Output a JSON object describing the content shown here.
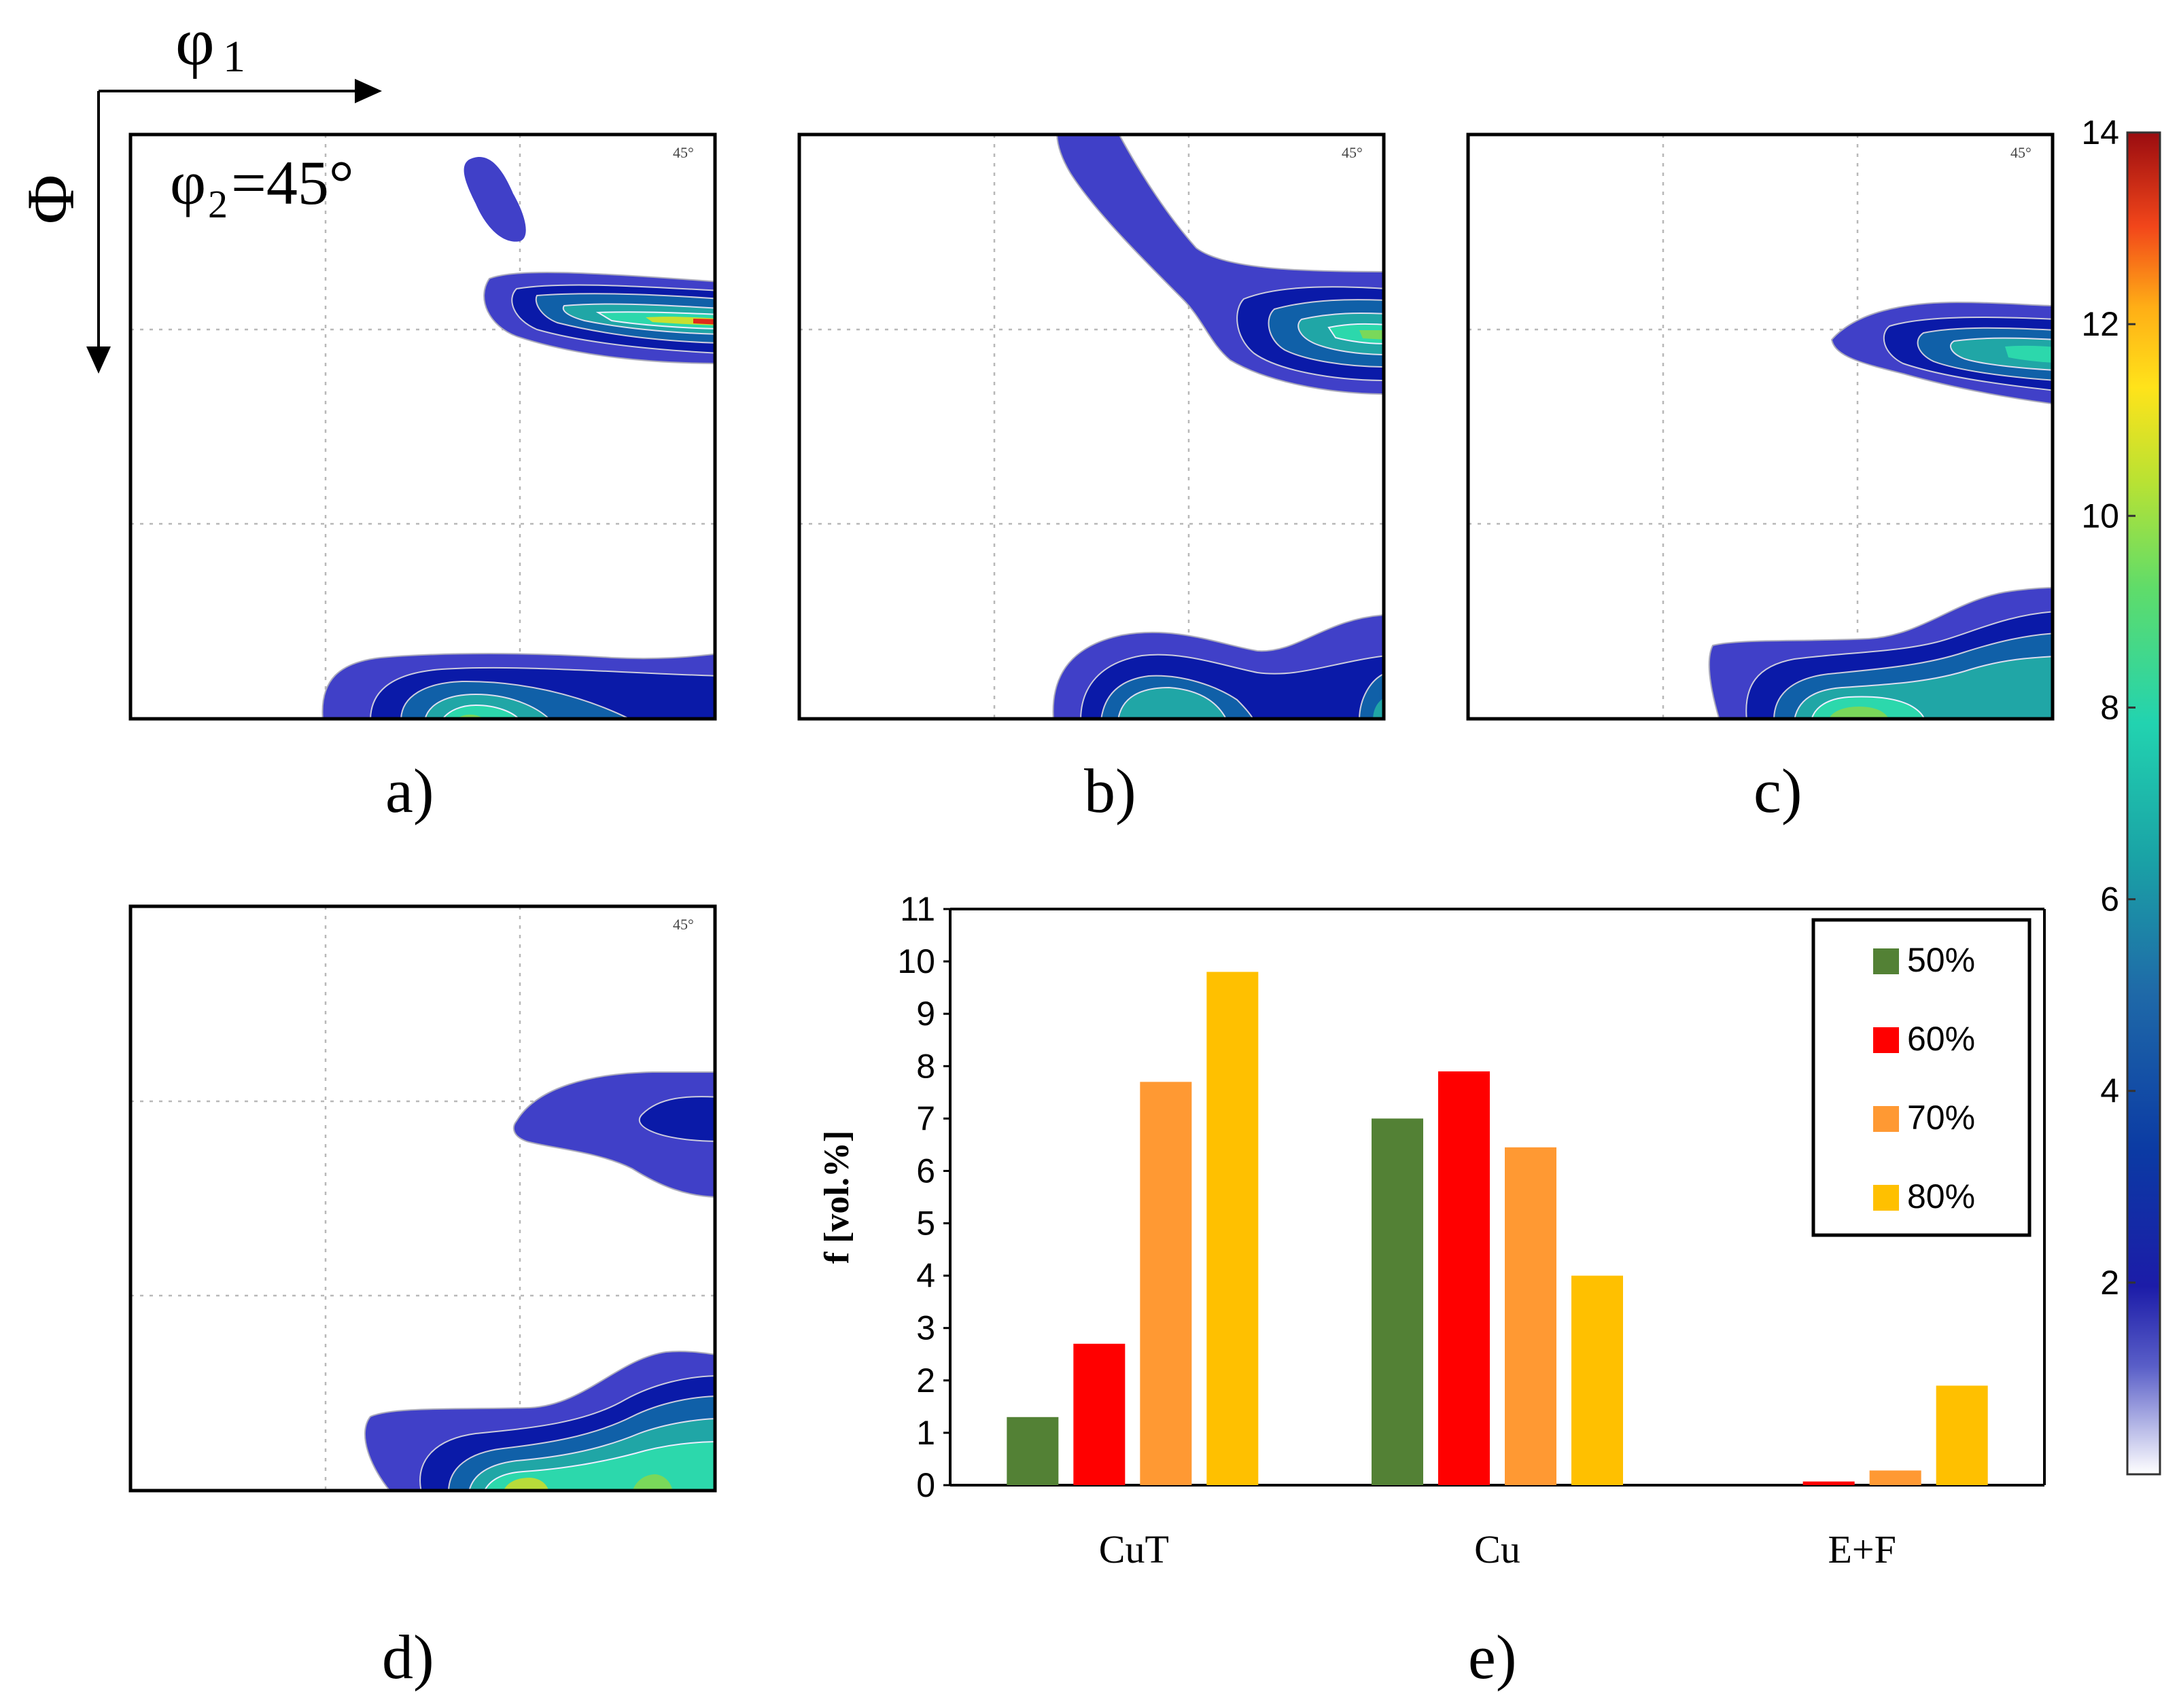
{
  "axes_diagram": {
    "phi1_label": "φ",
    "phi1_sub": "1",
    "Phi_label": "Φ",
    "phi2_label": "φ",
    "phi2_sub": "2",
    "phi2_value": "=45°"
  },
  "panels": [
    {
      "label": "a)",
      "tag": "45°"
    },
    {
      "label": "b)",
      "tag": "45°"
    },
    {
      "label": "c)",
      "tag": "45°"
    },
    {
      "label": "d)",
      "tag": "45°"
    }
  ],
  "colorbar": {
    "ticks": [
      "2",
      "4",
      "6",
      "8",
      "10",
      "12",
      "14"
    ],
    "min": 0,
    "max": 14
  },
  "chart_data": {
    "type": "bar",
    "panel_label": "e)",
    "title": "",
    "xlabel": "",
    "ylabel": "f [vol.%]",
    "ylim": [
      0,
      11
    ],
    "yticks": [
      "0",
      "1",
      "2",
      "3",
      "4",
      "5",
      "6",
      "7",
      "8",
      "9",
      "10",
      "11"
    ],
    "categories": [
      "CuT",
      "Cu",
      "E+F"
    ],
    "series": [
      {
        "name": "50%",
        "color": "#538135",
        "values": [
          1.3,
          7.0,
          0.0
        ]
      },
      {
        "name": "60%",
        "color": "#ff0000",
        "values": [
          2.7,
          7.9,
          0.07
        ]
      },
      {
        "name": "70%",
        "color": "#ff9933",
        "values": [
          7.7,
          6.45,
          0.28
        ]
      },
      {
        "name": "80%",
        "color": "#ffc000",
        "values": [
          9.8,
          4.0,
          1.9
        ]
      }
    ],
    "legend_position": "top-right"
  }
}
